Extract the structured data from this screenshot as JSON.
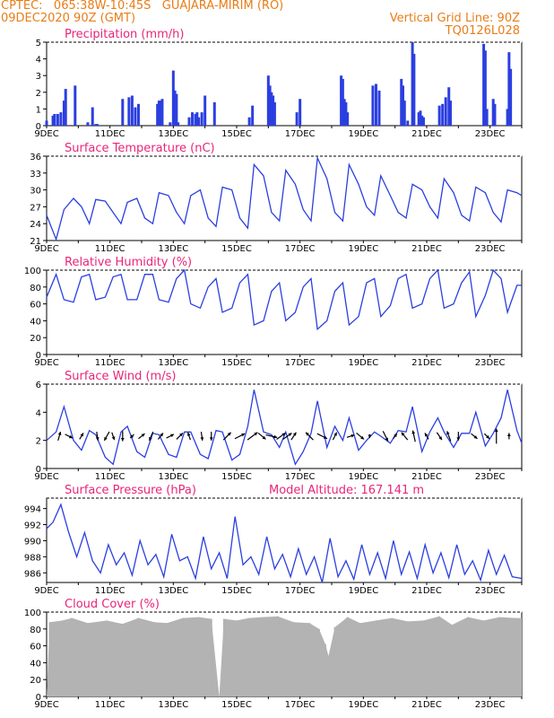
{
  "header": {
    "line1": "CPTEC:   065:38W-10:45S   GUAJARA-MIRIM (RO)",
    "line2_left": "09DEC2020 90Z (GMT)",
    "line2_right": "Vertical Grid Line: 90Z",
    "line3_right": "TQ0126L028"
  },
  "chart_data": [
    {
      "type": "bar",
      "title": "Precipitation (mm/h)",
      "ylim": [
        0,
        5
      ],
      "yticks": [
        "0",
        "1",
        "2",
        "3",
        "4",
        "5"
      ],
      "x_labels": [
        "9DEC",
        "11DEC",
        "13DEC",
        "15DEC",
        "17DEC",
        "19DEC",
        "21DEC",
        "23DEC"
      ],
      "color": "#2b3fe0",
      "days": [
        9,
        9.2,
        9.25,
        9.35,
        9.45,
        9.55,
        9.6,
        9.9,
        10.3,
        10.45,
        10.55,
        10.6,
        11.4,
        11.6,
        11.7,
        11.8,
        11.9,
        12.5,
        12.55,
        12.6,
        12.65,
        12.9,
        13,
        13.05,
        13.1,
        13.15,
        13.5,
        13.6,
        13.7,
        13.75,
        13.8,
        13.9,
        14,
        14.3,
        15.4,
        15.5,
        16,
        16.05,
        16.1,
        16.15,
        16.2,
        16.9,
        17,
        18.3,
        18.35,
        18.4,
        18.45,
        18.5,
        19.3,
        19.4,
        19.5,
        20.2,
        20.25,
        20.3,
        20.4,
        20.55,
        20.6,
        20.75,
        20.8,
        20.85,
        20.9,
        21.4,
        21.5,
        21.6,
        21.7,
        21.75,
        22.8,
        22.85,
        22.9,
        23.1,
        23.15,
        23.55,
        23.6,
        23.65
      ],
      "values": [
        0.3,
        0.6,
        0.7,
        0.7,
        0.8,
        1.5,
        2.2,
        2.4,
        0.2,
        1.1,
        0.1,
        0.1,
        1.6,
        1.7,
        1.8,
        1.1,
        1.3,
        1.3,
        1.5,
        1.5,
        1.6,
        0.2,
        3.3,
        2.1,
        1.9,
        0.2,
        0.5,
        0.8,
        0.7,
        0.8,
        0.5,
        0.8,
        1.8,
        1.4,
        0.5,
        1.2,
        3.0,
        2.4,
        2.0,
        1.8,
        1.4,
        0.8,
        1.6,
        3.0,
        2.8,
        1.6,
        1.4,
        0.8,
        2.4,
        2.5,
        2.1,
        2.8,
        2.4,
        1.5,
        0.3,
        5.0,
        4.3,
        0.8,
        0.9,
        0.6,
        0.5,
        1.2,
        1.3,
        1.7,
        2.3,
        1.5,
        4.9,
        4.5,
        1.0,
        1.6,
        1.3,
        1.0,
        4.4,
        3.4
      ]
    },
    {
      "type": "line",
      "title": "Surface Temperature (nC)",
      "ylim": [
        21,
        36
      ],
      "yticks": [
        "21",
        "24",
        "27",
        "30",
        "33",
        "36"
      ],
      "x_labels": [
        "9DEC",
        "11DEC",
        "13DEC",
        "15DEC",
        "17DEC",
        "19DEC",
        "21DEC",
        "23DEC"
      ],
      "color": "#2b3fe0",
      "x": [
        9.0,
        9.3,
        9.55,
        9.85,
        10.1,
        10.35,
        10.55,
        10.85,
        11.1,
        11.35,
        11.55,
        11.85,
        12.1,
        12.35,
        12.55,
        12.85,
        13.1,
        13.35,
        13.55,
        13.85,
        14.1,
        14.35,
        14.55,
        14.85,
        15.1,
        15.35,
        15.55,
        15.85,
        16.1,
        16.35,
        16.55,
        16.85,
        17.1,
        17.35,
        17.55,
        17.85,
        18.1,
        18.35,
        18.55,
        18.85,
        19.1,
        19.35,
        19.55,
        19.85,
        20.1,
        20.35,
        20.55,
        20.85,
        21.1,
        21.35,
        21.55,
        21.85,
        22.1,
        22.35,
        22.55,
        22.85,
        23.1,
        23.35,
        23.55,
        23.85,
        24.0
      ],
      "y": [
        25.5,
        21.2,
        26.5,
        28.5,
        27,
        24,
        28.3,
        28,
        26,
        24,
        27.8,
        28.5,
        25,
        24,
        29.5,
        29,
        26,
        24,
        29,
        30,
        25,
        23.5,
        30.5,
        30,
        25,
        23.2,
        34.5,
        32.5,
        26,
        24.5,
        33.5,
        31,
        26.5,
        24.5,
        35.7,
        32,
        26,
        24.5,
        34.5,
        31,
        27,
        25.5,
        32.5,
        29,
        26,
        25,
        31,
        30,
        27,
        25,
        32,
        29.5,
        25.5,
        24.5,
        30.5,
        29.5,
        26,
        24.3,
        30,
        29.5,
        29
      ]
    },
    {
      "type": "line",
      "title": "Relative Humidity (%)",
      "ylim": [
        0,
        100
      ],
      "yticks": [
        "0",
        "20",
        "40",
        "60",
        "80",
        "100"
      ],
      "x_labels": [
        "9DEC",
        "11DEC",
        "13DEC",
        "15DEC",
        "17DEC",
        "19DEC",
        "21DEC",
        "23DEC"
      ],
      "color": "#2b3fe0",
      "x": [
        9.0,
        9.3,
        9.55,
        9.85,
        10.1,
        10.35,
        10.55,
        10.85,
        11.1,
        11.35,
        11.55,
        11.85,
        12.1,
        12.35,
        12.55,
        12.85,
        13.1,
        13.35,
        13.55,
        13.85,
        14.1,
        14.35,
        14.55,
        14.85,
        15.1,
        15.35,
        15.55,
        15.85,
        16.1,
        16.35,
        16.55,
        16.85,
        17.1,
        17.35,
        17.55,
        17.85,
        18.1,
        18.35,
        18.55,
        18.85,
        19.1,
        19.35,
        19.55,
        19.85,
        20.1,
        20.35,
        20.55,
        20.85,
        21.1,
        21.35,
        21.55,
        21.85,
        22.1,
        22.35,
        22.55,
        22.85,
        23.1,
        23.35,
        23.55,
        23.85,
        24.0
      ],
      "y": [
        68,
        95,
        65,
        62,
        92,
        95,
        65,
        68,
        92,
        95,
        65,
        65,
        95,
        95,
        65,
        62,
        90,
        100,
        60,
        55,
        80,
        90,
        50,
        55,
        85,
        95,
        35,
        40,
        75,
        85,
        40,
        50,
        80,
        90,
        30,
        40,
        75,
        85,
        35,
        45,
        85,
        90,
        45,
        58,
        90,
        95,
        55,
        60,
        90,
        100,
        55,
        60,
        85,
        98,
        45,
        70,
        100,
        90,
        50,
        82,
        82
      ]
    },
    {
      "type": "line",
      "title": "Surface Wind (m/s)",
      "ylim": [
        0,
        6
      ],
      "yticks": [
        "0",
        "2",
        "4",
        "6"
      ],
      "x_labels": [
        "9DEC",
        "11DEC",
        "13DEC",
        "15DEC",
        "17DEC",
        "19DEC",
        "21DEC",
        "23DEC"
      ],
      "color": "#2b3fe0",
      "x": [
        9.0,
        9.3,
        9.55,
        9.85,
        10.1,
        10.35,
        10.55,
        10.85,
        11.1,
        11.35,
        11.55,
        11.85,
        12.1,
        12.35,
        12.55,
        12.85,
        13.1,
        13.35,
        13.55,
        13.85,
        14.1,
        14.35,
        14.55,
        14.85,
        15.1,
        15.35,
        15.55,
        15.85,
        16.1,
        16.35,
        16.55,
        16.85,
        17.1,
        17.35,
        17.55,
        17.85,
        18.1,
        18.35,
        18.55,
        18.85,
        19.1,
        19.35,
        19.55,
        19.85,
        20.1,
        20.35,
        20.55,
        20.85,
        21.1,
        21.35,
        21.55,
        21.85,
        22.1,
        22.35,
        22.55,
        22.85,
        23.1,
        23.35,
        23.55,
        23.85,
        24.0
      ],
      "y": [
        2.0,
        2.6,
        4.4,
        2.0,
        1.3,
        2.7,
        2.4,
        0.8,
        0.3,
        2.6,
        3.0,
        1.2,
        0.8,
        2.5,
        2.4,
        1.0,
        0.8,
        2.6,
        2.6,
        1.0,
        0.7,
        2.7,
        2.6,
        0.6,
        1.0,
        3.0,
        5.6,
        2.6,
        2.4,
        1.5,
        2.6,
        0.3,
        1.2,
        2.5,
        4.8,
        1.5,
        3.0,
        2.0,
        3.6,
        1.3,
        2.0,
        2.6,
        2.3,
        1.8,
        2.7,
        2.6,
        4.4,
        1.2,
        2.6,
        3.6,
        2.6,
        1.5,
        2.5,
        2.5,
        4.0,
        1.6,
        2.5,
        3.6,
        5.6,
        2.7,
        1.8
      ],
      "arrows": {
        "x": [
          9.4,
          9.7,
          10.1,
          10.6,
          10.9,
          11.1,
          11.4,
          11.7,
          12.0,
          12.3,
          12.6,
          12.9,
          13.2,
          13.5,
          13.9,
          14.2,
          14.7,
          15.1,
          15.5,
          15.8,
          16.1,
          16.4,
          16.6,
          16.8,
          17.3,
          17.7,
          18.1,
          18.6,
          18.9,
          19.2,
          19.7,
          20.0,
          20.3,
          20.6,
          21.0,
          21.4,
          21.7,
          22.0,
          22.5,
          22.9,
          23.2,
          23.6
        ],
        "u": [
          0.2,
          0.6,
          0.3,
          0.1,
          -0.4,
          0.2,
          0.0,
          -0.3,
          0.5,
          -0.3,
          0.4,
          0.6,
          0.5,
          -0.2,
          0.1,
          0.0,
          0.6,
          0.8,
          0.8,
          0.6,
          0.9,
          0.7,
          0.7,
          0.4,
          -0.6,
          0.8,
          0.3,
          0.6,
          0.6,
          0.0,
          0.4,
          0.3,
          -0.5,
          -0.2,
          -0.3,
          0.4,
          -0.3,
          0.0,
          0.5,
          0.4,
          0.0,
          0.0
        ],
        "v": [
          0.7,
          -0.3,
          0.5,
          -0.7,
          -0.7,
          -0.6,
          -0.8,
          -0.3,
          0.4,
          -0.7,
          0.5,
          0.3,
          0.5,
          0.6,
          -0.7,
          -0.7,
          0.6,
          0.4,
          0.6,
          -0.5,
          -0.2,
          0.5,
          0.5,
          0.6,
          0.6,
          -0.4,
          0.6,
          0.2,
          -0.5,
          -0.3,
          -0.8,
          0.4,
          0.6,
          0.9,
          0.5,
          -0.6,
          0.8,
          -0.7,
          -0.4,
          -0.4,
          1.2,
          0.5
        ]
      }
    },
    {
      "type": "line",
      "title": "Surface Pressure (hPa)",
      "subtitle": "Model Altitude: 167.141  m",
      "ylim": [
        984.8,
        995.3
      ],
      "yticks": [
        "986",
        "988",
        "990",
        "992",
        "994"
      ],
      "x_labels": [
        "9DEC",
        "11DEC",
        "13DEC",
        "15DEC",
        "17DEC",
        "19DEC",
        "21DEC",
        "23DEC"
      ],
      "color": "#2b3fe0",
      "x": [
        9.0,
        9.2,
        9.45,
        9.7,
        9.95,
        10.2,
        10.45,
        10.7,
        10.95,
        11.2,
        11.45,
        11.7,
        11.95,
        12.2,
        12.45,
        12.7,
        12.95,
        13.2,
        13.45,
        13.7,
        13.95,
        14.2,
        14.45,
        14.7,
        14.95,
        15.2,
        15.45,
        15.7,
        15.95,
        16.2,
        16.45,
        16.7,
        16.95,
        17.2,
        17.45,
        17.7,
        17.95,
        18.2,
        18.45,
        18.7,
        18.95,
        19.2,
        19.45,
        19.7,
        19.95,
        20.2,
        20.45,
        20.7,
        20.95,
        21.2,
        21.45,
        21.7,
        21.95,
        22.2,
        22.45,
        22.7,
        22.95,
        23.2,
        23.45,
        23.7,
        24.0
      ],
      "y": [
        991.5,
        992.3,
        994.5,
        991,
        988,
        991,
        987.5,
        986,
        989.5,
        987,
        988.5,
        985.7,
        990,
        987,
        988.3,
        985.5,
        990.8,
        987.5,
        988,
        985.3,
        990.5,
        986.5,
        988.5,
        985.3,
        993,
        987,
        988,
        985.8,
        990.5,
        986.5,
        988.3,
        985.5,
        989,
        985.8,
        988,
        984.8,
        990.3,
        985.5,
        987.5,
        985.2,
        989.5,
        985.8,
        988.5,
        985.3,
        990,
        985.8,
        988.6,
        985.3,
        989.5,
        986,
        988.5,
        985.4,
        989.5,
        985.8,
        987.5,
        985.1,
        988.8,
        985.8,
        988.2,
        985.5,
        985.3
      ]
    },
    {
      "type": "bar",
      "title": "Cloud Cover (%)",
      "ylim": [
        0,
        100
      ],
      "yticks": [
        "0",
        "20",
        "40",
        "60",
        "80",
        "100"
      ],
      "x_labels": [
        "9DEC",
        "11DEC",
        "13DEC",
        "15DEC",
        "17DEC",
        "19DEC",
        "21DEC",
        "23DEC"
      ],
      "color": "#b3b3b3",
      "fill_level": 95,
      "x": [
        9.1,
        9.5,
        9.8,
        10.3,
        10.9,
        11.4,
        11.9,
        12.4,
        12.8,
        13.3,
        13.8,
        14.2,
        14.45,
        14.6,
        15.0,
        15.4,
        15.8,
        16.3,
        16.8,
        17.3,
        17.6,
        17.8,
        17.9,
        18.1,
        18.5,
        18.9,
        19.4,
        19.9,
        20.4,
        20.9,
        21.4,
        21.8,
        22.3,
        22.8,
        23.3,
        23.8
      ],
      "y": [
        88,
        90,
        93,
        87,
        90,
        86,
        93,
        88,
        87,
        93,
        94,
        92,
        0,
        92,
        90,
        93,
        94,
        95,
        88,
        87,
        80,
        62,
        48,
        82,
        94,
        87,
        90,
        93,
        89,
        90,
        95,
        85,
        94,
        90,
        94,
        93
      ]
    }
  ]
}
